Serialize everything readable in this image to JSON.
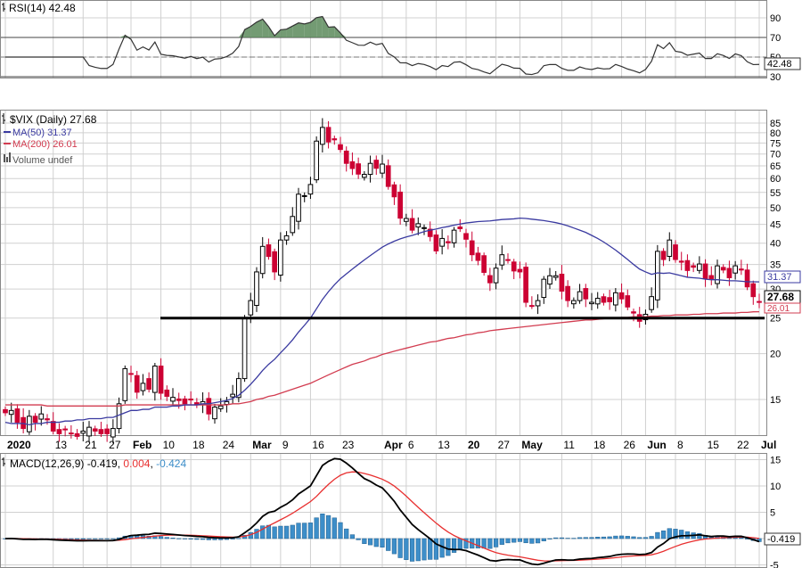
{
  "colors": {
    "up": "#000000",
    "down": "#cc0033",
    "ma50": "#3a3aa0",
    "ma200": "#d23c50",
    "rsi": "#333333",
    "rsi_fill": "#5a8a5a",
    "macd": "#000000",
    "signal": "#e83030",
    "hist": "#3d8ec9",
    "grid": "#d0d0d0",
    "panel_border": "#888888"
  },
  "x_ticks": [
    "2020",
    "13",
    "21",
    "27",
    "Feb",
    "10",
    "18",
    "24",
    "Mar",
    "9",
    "16",
    "23",
    "Apr",
    "6",
    "13",
    "20",
    "27",
    "May",
    "11",
    "18",
    "26",
    "Jun",
    "8",
    "15",
    "22",
    "Jul"
  ],
  "rsi_panel": {
    "title": "RSI(14) 42.48",
    "ticks": [
      "90",
      "70",
      "50",
      "30"
    ],
    "current_tag": "42.48",
    "upper": 70,
    "lower": 30,
    "current": 42.48
  },
  "price_panel": {
    "title": "$VIX (Daily) 27.68",
    "legend": [
      {
        "key": "ma50",
        "label": "MA(50) 31.37"
      },
      {
        "key": "ma200",
        "label": "MA(200) 26.01"
      },
      {
        "key": "vol",
        "label": "Volume undef"
      }
    ],
    "ticks": [
      "85",
      "80",
      "75",
      "70",
      "65",
      "60",
      "55",
      "50",
      "45",
      "40",
      "35",
      "30",
      "25",
      "20",
      "15"
    ],
    "tags": {
      "ma50": "31.37",
      "close": "27.68",
      "ma200": "26.01"
    },
    "support_level": 25
  },
  "macd_panel": {
    "title_prefix": "MACD(12,26,9) ",
    "title_macd": "-0.419",
    "title_signal": "0.004",
    "title_hist": "-0.424",
    "ticks": [
      "15",
      "10",
      "5",
      "0",
      "-5"
    ],
    "current_tag": "-0.419"
  },
  "chart_data": {
    "type": "candlestick",
    "title": "$VIX (Daily) 27.68",
    "ma50_last": 31.37,
    "ma200_last": 26.01,
    "close_last": 27.68,
    "rsi_last": 42.48,
    "macd_last": -0.419,
    "signal_last": 0.004,
    "hist_last": -0.424,
    "closes": [
      13.8,
      14.0,
      13.0,
      12.5,
      13.5,
      13.0,
      13.7,
      13.2,
      12.3,
      12.1,
      12.4,
      12.1,
      11.9,
      12.3,
      12.6,
      12.3,
      12.1,
      12.1,
      12.5,
      14.6,
      18.2,
      17.6,
      15.7,
      16.6,
      16.0,
      18.5,
      15.6,
      15.3,
      15.2,
      14.9,
      14.6,
      15.0,
      14.5,
      14.8,
      13.7,
      14.3,
      14.4,
      14.8,
      15.5,
      17.1,
      25.0,
      27.9,
      33.4,
      39.2,
      36.8,
      33.4,
      40.8,
      41.9,
      47.3,
      54.4,
      53.9,
      57.8,
      75.9,
      82.7,
      75.5,
      76.5,
      72.0,
      66.0,
      63.9,
      61.7,
      61.6,
      66.0,
      64.0,
      65.7,
      57.1,
      53.5,
      46.8,
      46.7,
      43.4,
      45.2,
      44.1,
      41.7,
      38.1,
      41.2,
      40.1,
      43.4,
      43.8,
      41.0,
      37.2,
      35.9,
      33.3,
      31.2,
      34.2,
      37.2,
      35.9,
      33.6,
      33.4,
      27.6,
      27.0,
      27.9,
      31.9,
      32.6,
      32.6,
      29.6,
      27.9,
      27.9,
      29.5,
      28.2,
      27.6,
      28.3,
      27.6,
      27.7,
      29.3,
      28.2,
      26.8,
      25.8,
      24.5,
      25.6,
      28.6,
      38.0,
      36.1,
      40.8,
      36.1,
      35.5,
      33.7,
      34.4,
      35.1,
      32.0,
      32.0,
      34.7,
      33.8,
      32.2,
      34.7,
      33.8,
      30.4,
      28.6,
      27.7
    ],
    "ma50": [
      13.0,
      12.9,
      12.9,
      12.9,
      12.8,
      12.9,
      12.9,
      13.0,
      13.0,
      13.0,
      13.1,
      13.1,
      13.2,
      13.2,
      13.3,
      13.3,
      13.3,
      13.4,
      13.4,
      13.6,
      13.8,
      14.0,
      14.0,
      14.1,
      14.1,
      14.3,
      14.3,
      14.3,
      14.4,
      14.4,
      14.5,
      14.5,
      14.5,
      14.6,
      14.6,
      14.7,
      14.8,
      14.9,
      15.1,
      15.4,
      15.9,
      16.5,
      17.2,
      18.0,
      18.7,
      19.3,
      20.1,
      20.9,
      21.8,
      22.9,
      23.9,
      25.0,
      26.5,
      28.1,
      29.5,
      30.8,
      32.0,
      33.0,
      34.0,
      35.0,
      36.0,
      37.0,
      38.0,
      39.0,
      39.8,
      40.5,
      41.1,
      41.6,
      42.0,
      42.5,
      43.0,
      43.4,
      43.7,
      44.1,
      44.4,
      44.8,
      45.1,
      45.4,
      45.6,
      45.8,
      45.9,
      46.0,
      46.2,
      46.4,
      46.5,
      46.6,
      46.8,
      46.7,
      46.5,
      46.3,
      46.1,
      45.8,
      45.5,
      45.1,
      44.6,
      44.0,
      43.4,
      42.8,
      42.0,
      41.2,
      40.3,
      39.3,
      38.3,
      37.2,
      36.1,
      35.0,
      34.0,
      33.4,
      32.9,
      33.2,
      33.1,
      33.2,
      32.9,
      32.6,
      32.3,
      32.2,
      32.1,
      31.9,
      31.8,
      31.8,
      31.7,
      31.6,
      31.6,
      31.5,
      31.4,
      31.4,
      31.37
    ],
    "ma200": [
      14.5,
      14.5,
      14.5,
      14.5,
      14.5,
      14.5,
      14.5,
      14.4,
      14.4,
      14.4,
      14.4,
      14.4,
      14.4,
      14.4,
      14.4,
      14.4,
      14.4,
      14.4,
      14.4,
      14.4,
      14.5,
      14.5,
      14.5,
      14.5,
      14.5,
      14.5,
      14.5,
      14.5,
      14.5,
      14.5,
      14.5,
      14.5,
      14.5,
      14.5,
      14.5,
      14.5,
      14.5,
      14.5,
      14.6,
      14.6,
      14.7,
      14.8,
      15.0,
      15.1,
      15.3,
      15.4,
      15.6,
      15.8,
      16.0,
      16.2,
      16.4,
      16.6,
      16.9,
      17.2,
      17.5,
      17.8,
      18.1,
      18.4,
      18.7,
      18.9,
      19.1,
      19.4,
      19.6,
      19.9,
      20.1,
      20.3,
      20.5,
      20.7,
      20.9,
      21.1,
      21.3,
      21.5,
      21.6,
      21.8,
      22.0,
      22.1,
      22.3,
      22.5,
      22.6,
      22.8,
      22.9,
      23.1,
      23.2,
      23.3,
      23.4,
      23.5,
      23.6,
      23.7,
      23.8,
      23.9,
      24.0,
      24.1,
      24.2,
      24.3,
      24.4,
      24.5,
      24.6,
      24.7,
      24.7,
      24.8,
      24.9,
      25.0,
      25.0,
      25.1,
      25.1,
      25.2,
      25.2,
      25.2,
      25.3,
      25.3,
      25.4,
      25.4,
      25.5,
      25.5,
      25.5,
      25.6,
      25.6,
      25.7,
      25.7,
      25.7,
      25.8,
      25.8,
      25.8,
      25.9,
      25.9,
      26.0,
      26.01
    ]
  }
}
